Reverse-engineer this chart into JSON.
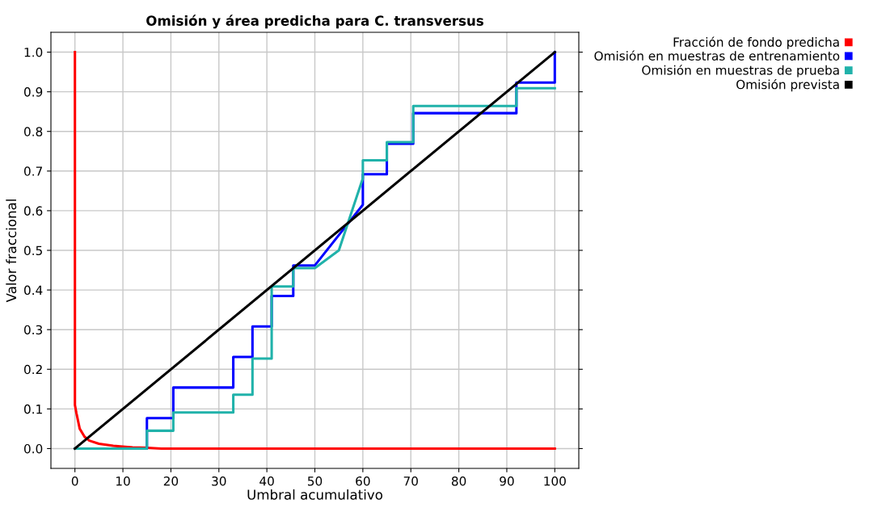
{
  "chart_data": {
    "type": "line",
    "title": "Omisión y área predicha para C. transversus",
    "xlabel": "Umbral acumulativo",
    "ylabel": "Valor fraccional",
    "xlim": [
      -5,
      105
    ],
    "ylim": [
      -0.05,
      1.05
    ],
    "xticks": [
      0,
      10,
      20,
      30,
      40,
      50,
      60,
      70,
      80,
      90,
      100
    ],
    "yticks": [
      {
        "value": 0,
        "label": "0.0"
      },
      {
        "value": 0.1,
        "label": "0.1"
      },
      {
        "value": 0.2,
        "label": "0.2"
      },
      {
        "value": 0.3,
        "label": "0.3"
      },
      {
        "value": 0.4,
        "label": "0.4"
      },
      {
        "value": 0.5,
        "label": "0.5"
      },
      {
        "value": 0.6,
        "label": "0.6"
      },
      {
        "value": 0.7,
        "label": "0.7"
      },
      {
        "value": 0.8,
        "label": "0.8"
      },
      {
        "value": 0.9,
        "label": "0.9"
      },
      {
        "value": 1,
        "label": "1.0"
      }
    ],
    "grid": true,
    "legend": "top right",
    "marker": "none",
    "line_style": "solid",
    "series": [
      {
        "name": "Fracción de fondo predicha",
        "color": "#ff0000",
        "x": [
          0,
          0,
          0.3,
          1,
          2,
          3,
          5,
          8,
          12,
          15,
          18,
          100
        ],
        "values": [
          1.0,
          0.11,
          0.09,
          0.05,
          0.03,
          0.02,
          0.012,
          0.007,
          0.003,
          0.002,
          0,
          0
        ]
      },
      {
        "name": "Omisión en muestras de entrenamiento",
        "color": "#0000ff",
        "x": [
          0,
          15,
          15,
          20.5,
          20.5,
          33,
          33,
          37,
          37,
          41,
          41,
          45.5,
          45.5,
          50,
          60,
          60,
          65,
          65,
          70.5,
          70.5,
          92,
          92,
          100,
          100
        ],
        "values": [
          0,
          0,
          0.077,
          0.077,
          0.154,
          0.154,
          0.231,
          0.231,
          0.308,
          0.308,
          0.385,
          0.385,
          0.462,
          0.462,
          0.615,
          0.692,
          0.692,
          0.769,
          0.769,
          0.846,
          0.846,
          0.923,
          0.923,
          1.0
        ]
      },
      {
        "name": "Omisión en muestras de prueba",
        "color": "#20b2aa",
        "x": [
          0,
          15,
          15,
          20.5,
          20.5,
          33,
          33,
          37,
          37,
          41,
          41,
          45.5,
          45.5,
          50,
          55,
          60,
          60,
          65,
          65,
          70.5,
          70.5,
          92,
          92,
          100
        ],
        "values": [
          0,
          0,
          0.045,
          0.045,
          0.091,
          0.091,
          0.136,
          0.136,
          0.227,
          0.227,
          0.409,
          0.409,
          0.455,
          0.455,
          0.5,
          0.682,
          0.727,
          0.727,
          0.773,
          0.773,
          0.864,
          0.864,
          0.909,
          0.909
        ]
      },
      {
        "name": "Omisión prevista",
        "color": "#000000",
        "x": [
          0,
          100
        ],
        "values": [
          0,
          1
        ]
      }
    ]
  }
}
